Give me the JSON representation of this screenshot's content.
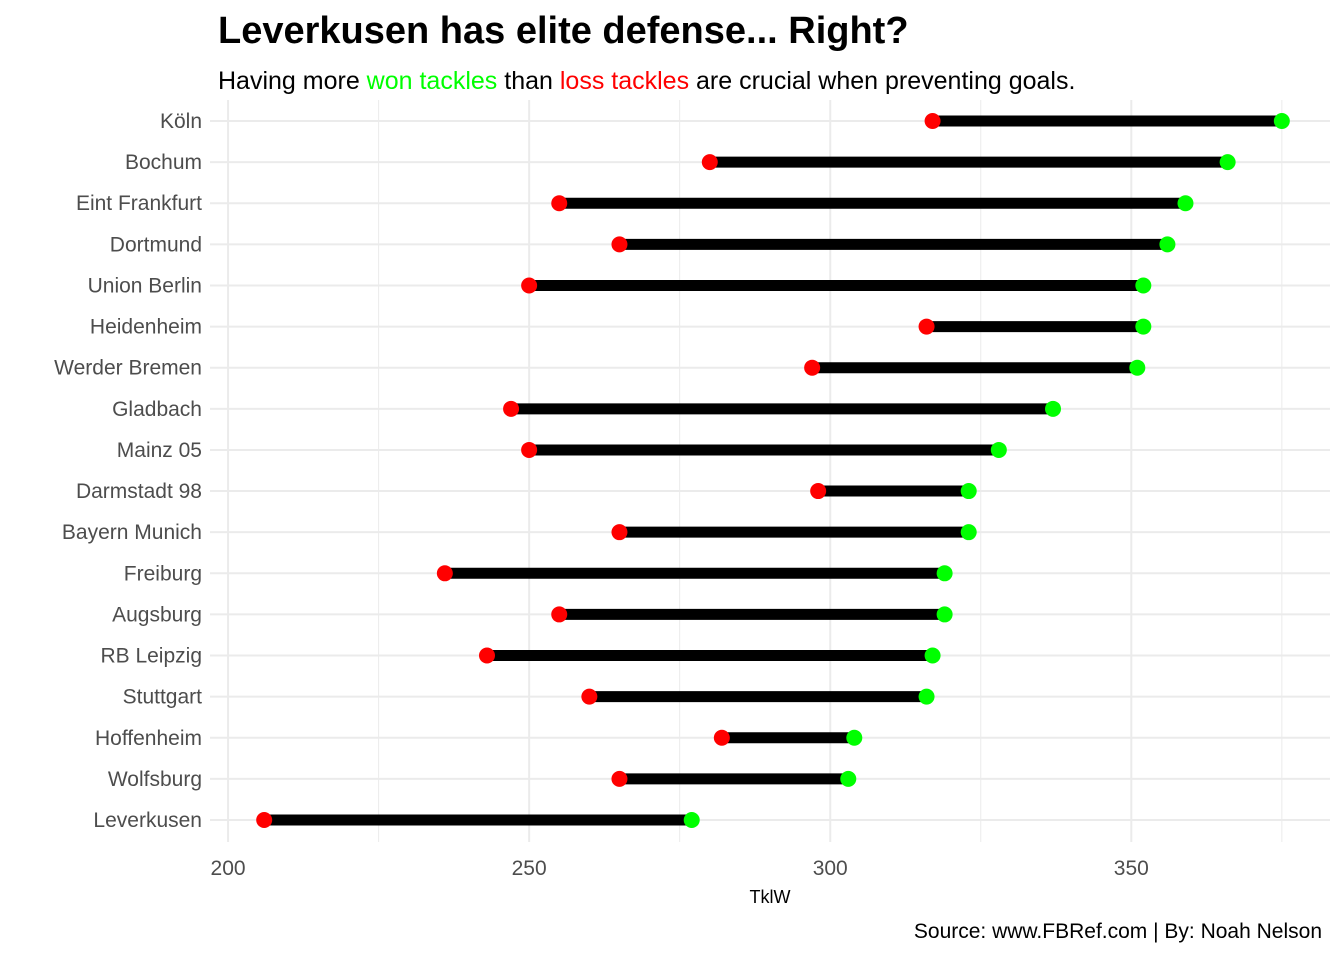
{
  "title": "Leverkusen has elite defense... Right?",
  "subtitle": {
    "before": "Having more ",
    "won": "won tackles",
    "middle": " than ",
    "loss": "loss tackles",
    "after": " are crucial when preventing goals."
  },
  "caption": "Source: www.FBRef.com | By: Noah Nelson",
  "colors": {
    "won": "#00ff00",
    "loss": "#ff0000",
    "segment": "#000000",
    "grid": "#ebebeb"
  },
  "chart_data": {
    "type": "dumbbell",
    "xlabel": "TklW",
    "ylabel": "",
    "xlim": [
      197,
      383
    ],
    "xticks": [
      200,
      250,
      300,
      350
    ],
    "grid": true,
    "legend": "none",
    "teams": [
      {
        "name": "Köln",
        "loss": 317,
        "won": 375
      },
      {
        "name": "Bochum",
        "loss": 280,
        "won": 366
      },
      {
        "name": "Eint Frankfurt",
        "loss": 255,
        "won": 359
      },
      {
        "name": "Dortmund",
        "loss": 265,
        "won": 356
      },
      {
        "name": "Union Berlin",
        "loss": 250,
        "won": 352
      },
      {
        "name": "Heidenheim",
        "loss": 316,
        "won": 352
      },
      {
        "name": "Werder Bremen",
        "loss": 297,
        "won": 351
      },
      {
        "name": "Gladbach",
        "loss": 247,
        "won": 337
      },
      {
        "name": "Mainz 05",
        "loss": 250,
        "won": 328
      },
      {
        "name": "Darmstadt 98",
        "loss": 298,
        "won": 323
      },
      {
        "name": "Bayern Munich",
        "loss": 265,
        "won": 323
      },
      {
        "name": "Freiburg",
        "loss": 236,
        "won": 319
      },
      {
        "name": "Augsburg",
        "loss": 255,
        "won": 319
      },
      {
        "name": "RB Leipzig",
        "loss": 243,
        "won": 317
      },
      {
        "name": "Stuttgart",
        "loss": 260,
        "won": 316
      },
      {
        "name": "Hoffenheim",
        "loss": 282,
        "won": 304
      },
      {
        "name": "Wolfsburg",
        "loss": 265,
        "won": 303
      },
      {
        "name": "Leverkusen",
        "loss": 206,
        "won": 277
      }
    ]
  }
}
